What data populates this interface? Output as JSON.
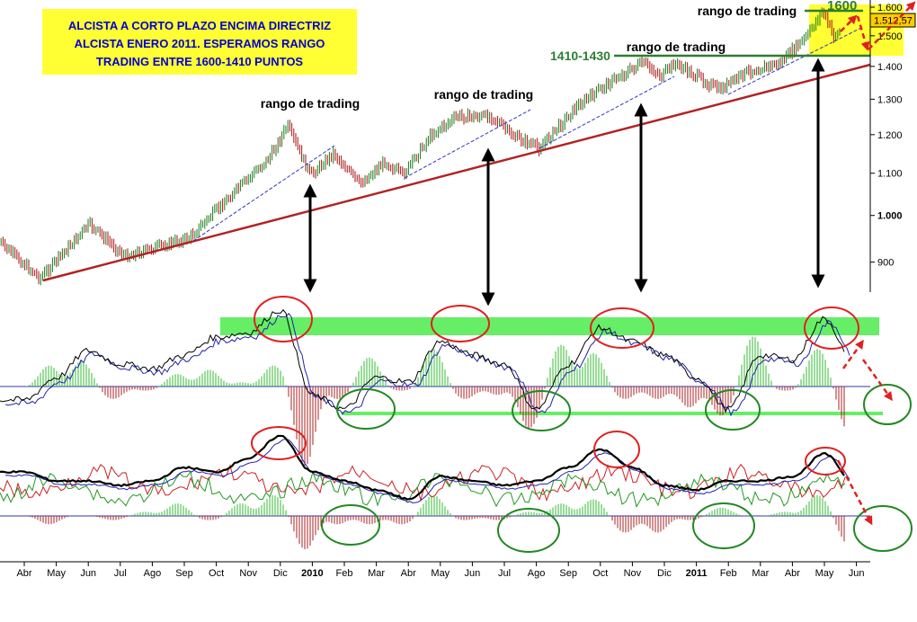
{
  "chart_data": {
    "type": "line",
    "title": "",
    "y_scale": "log",
    "ylim": [
      860,
      1620
    ],
    "y_ticks": [
      {
        "value": 1600,
        "label": "1.600"
      },
      {
        "value": 1500,
        "label": "1.500"
      },
      {
        "value": 1400,
        "label": "1.400"
      },
      {
        "value": 1300,
        "label": "1.300"
      },
      {
        "value": 1200,
        "label": "1.200"
      },
      {
        "value": 1100,
        "label": "1.100"
      },
      {
        "value": 1000,
        "label": "1.000",
        "bold": true
      },
      {
        "value": 900,
        "label": "900"
      }
    ],
    "x_ticks": [
      "Abr",
      "May",
      "Jun",
      "Jul",
      "Ago",
      "Sep",
      "Oct",
      "Nov",
      "Dic",
      "2010",
      "Feb",
      "Mar",
      "Abr",
      "May",
      "Jun",
      "Jul",
      "Ago",
      "Sep",
      "Oct",
      "Nov",
      "Dic",
      "2011",
      "Feb",
      "Mar",
      "Abr",
      "May",
      "Jun"
    ],
    "x_ticks_bold": [
      "2010",
      "2011"
    ],
    "price": [
      [
        "2009-03-08",
        942
      ],
      [
        "2009-04-16",
        868
      ],
      [
        "2009-06-02",
        980
      ],
      [
        "2009-07-06",
        912
      ],
      [
        "2009-09-05",
        950
      ],
      [
        "2009-10-09",
        1031
      ],
      [
        "2009-11-21",
        1140
      ],
      [
        "2009-12-08",
        1224
      ],
      [
        "2009-12-30",
        1095
      ],
      [
        "2010-01-21",
        1151
      ],
      [
        "2010-02-15",
        1073
      ],
      [
        "2010-03-11",
        1129
      ],
      [
        "2010-03-28",
        1095
      ],
      [
        "2010-04-24",
        1200
      ],
      [
        "2010-05-19",
        1250
      ],
      [
        "2010-06-22",
        1250
      ],
      [
        "2010-07-09",
        1200
      ],
      [
        "2010-08-05",
        1164
      ],
      [
        "2010-09-09",
        1276
      ],
      [
        "2010-10-13",
        1355
      ],
      [
        "2010-11-12",
        1410
      ],
      [
        "2010-11-30",
        1369
      ],
      [
        "2010-12-12",
        1410
      ],
      [
        "2011-01-24",
        1327
      ],
      [
        "2011-02-19",
        1382
      ],
      [
        "2011-03-23",
        1410
      ],
      [
        "2011-04-18",
        1500
      ],
      [
        "2011-05-02",
        1587
      ],
      [
        "2011-05-13",
        1500
      ],
      [
        "2011-05-20",
        1515
      ]
    ],
    "last_price_label": "1.512,57",
    "macd_panel": {
      "values": [
        -0.3,
        0.2,
        0.8,
        0.5,
        0.4,
        0.7,
        1.1,
        1.2,
        1.7,
        -0.2,
        -0.5,
        0.2,
        0.1,
        1.0,
        0.7,
        0.5,
        -0.5,
        0.5,
        1.3,
        1.0,
        0.7,
        0.2,
        -0.5,
        0.7,
        0.6,
        1.5,
        0.4
      ]
    },
    "lower_panel": {
      "values": [
        4.9,
        3.9,
        3.9,
        3.4,
        3.9,
        5.4,
        4.9,
        6.4,
        8.9,
        4.9,
        3.9,
        2.9,
        1.9,
        4.4,
        3.9,
        3.4,
        3.9,
        5.4,
        7.4,
        5.4,
        3.4,
        2.9,
        3.9,
        3.9,
        4.4,
        6.9,
        3.4
      ]
    },
    "colors": {
      "trendline": "#b22222",
      "channel": "#3333cc",
      "support": "#2e7d32",
      "band": "#66ee66",
      "box": "#ffff33",
      "up_candle": "#1a7a1a",
      "down_candle": "#aa1111"
    }
  },
  "annotations": {
    "box_lines": [
      "ALCISTA A CORTO PLAZO ENCIMA DIRECTRIZ",
      "ALCISTA ENERO 2011. ESPERAMOS RANGO",
      "TRADING ENTRE 1600-1410 PUNTOS"
    ],
    "range_labels": [
      "rango de trading",
      "rango de trading",
      "rango de trading",
      "rango de trading"
    ],
    "level_1410": "1410-1430",
    "level_1600": "1600"
  }
}
